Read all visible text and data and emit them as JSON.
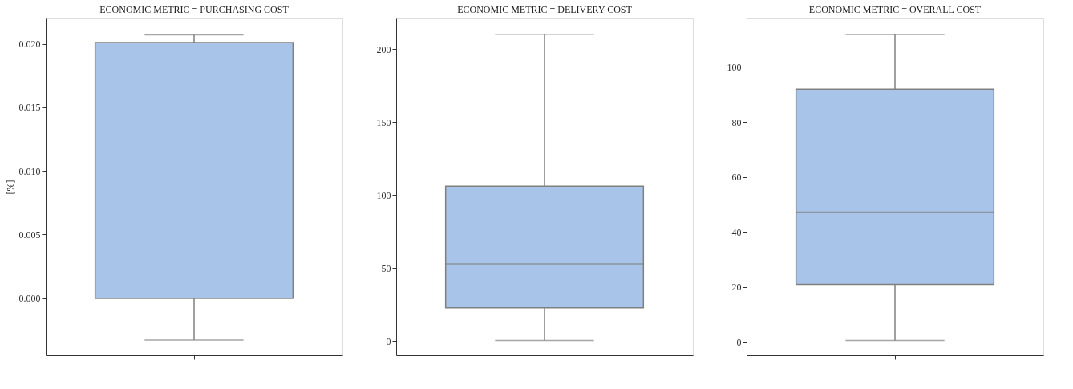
{
  "chart_data": [
    {
      "type": "box",
      "title": "ECONOMIC METRIC = PURCHASING COST",
      "ylabel": "[%]",
      "categories": [
        null
      ],
      "color": "#a8c4e8",
      "boxes": [
        {
          "low": -0.0033,
          "q1": 0.0,
          "median": 0.0,
          "q3": 0.0201,
          "high": 0.0207
        }
      ],
      "ylim": [
        -0.0045,
        0.022
      ],
      "yticks": [
        {
          "value": 0.0,
          "label": "0.000"
        },
        0.005,
        {
          "value": 0.01,
          "label": "0.010"
        },
        0.015,
        {
          "value": 0.02,
          "label": "0.020"
        }
      ],
      "tick_labels": "y",
      "grid": false
    },
    {
      "type": "box",
      "title": "ECONOMIC METRIC = DELIVERY COST",
      "categories": [
        null
      ],
      "color": "#a8c4e8",
      "boxes": [
        {
          "low": 0.5,
          "q1": 22.8,
          "median": 52.9,
          "q3": 106.1,
          "high": 210.2
        }
      ],
      "ylim": [
        -9.7,
        221
      ],
      "yticks": [
        0,
        50,
        100,
        150,
        200
      ],
      "tick_labels": "y",
      "grid": false
    },
    {
      "type": "box",
      "title": "ECONOMIC METRIC = OVERALL COST",
      "categories": [
        null
      ],
      "color": "#a8c4e8",
      "boxes": [
        {
          "low": 0.6,
          "q1": 21.0,
          "median": 47.2,
          "q3": 91.9,
          "high": 111.8
        }
      ],
      "ylim": [
        -4.8,
        117.6
      ],
      "yticks": [
        0,
        20,
        40,
        60,
        80,
        100
      ],
      "tick_labels": "y",
      "grid": false
    }
  ]
}
